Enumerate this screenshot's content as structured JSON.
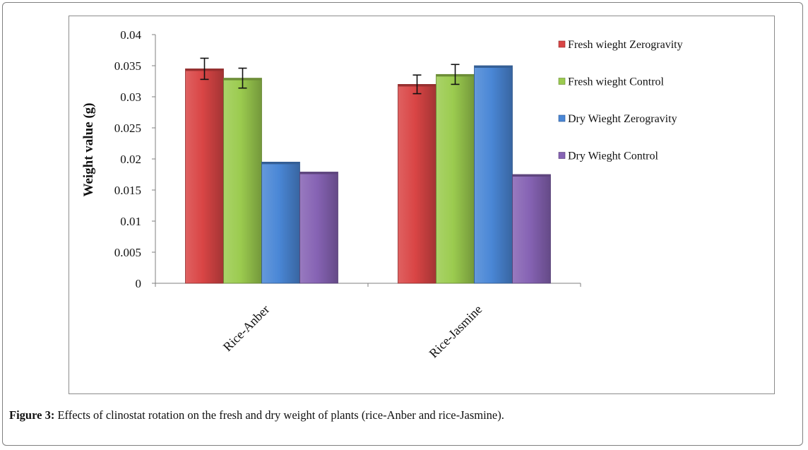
{
  "caption": {
    "label": "Figure 3:",
    "text": " Effects of clinostat rotation on the fresh and dry weight of plants (rice-Anber and rice-Jasmine)."
  },
  "chart_data": {
    "type": "bar",
    "ylabel": "Weight value (g)",
    "xlabel": "",
    "ylim": [
      0,
      0.04
    ],
    "yticks": [
      "0.04",
      "0.035",
      "0.03",
      "0.025",
      "0.02",
      "0.015",
      "0.01",
      "0.005",
      "0"
    ],
    "categories": [
      "Rice-Anber",
      "Rice-Jasmine"
    ],
    "legend_position": "right",
    "grid": false,
    "series": [
      {
        "name": "Fresh wieght Zerogravity",
        "color": "#d94545",
        "values": [
          0.0345,
          0.032
        ],
        "errors": [
          0.0017,
          0.0015
        ]
      },
      {
        "name": "Fresh wieght Control",
        "color": "#9bcb4f",
        "values": [
          0.033,
          0.0336
        ],
        "errors": [
          0.0016,
          0.0016
        ]
      },
      {
        "name": "Dry Wieght Zerogravity",
        "color": "#4a87d6",
        "values": [
          0.0195,
          0.035
        ],
        "errors": [
          null,
          null
        ]
      },
      {
        "name": "Dry Wieght Control",
        "color": "#8663b4",
        "values": [
          0.0179,
          0.0175
        ],
        "errors": [
          null,
          null
        ]
      }
    ]
  }
}
